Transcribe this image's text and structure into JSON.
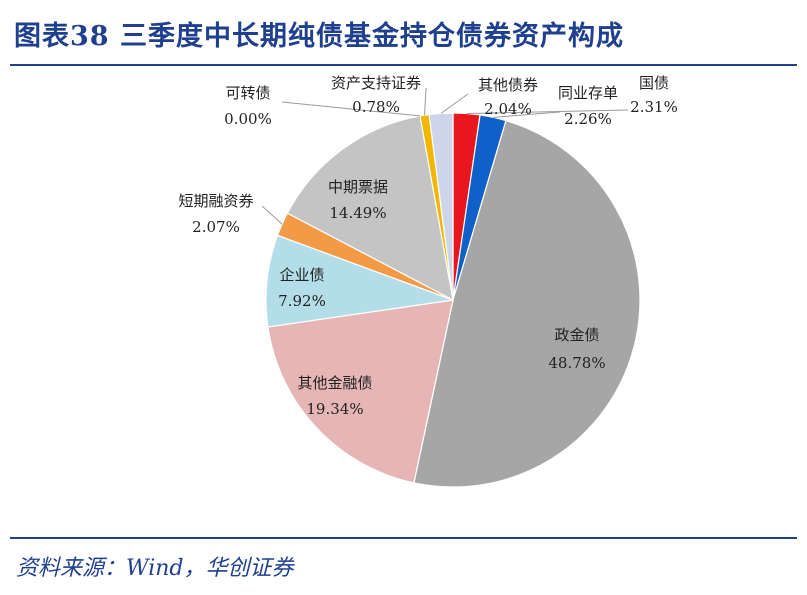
{
  "header": {
    "title": "图表38  三季度中长期纯债基金持仓债券资产构成"
  },
  "footer": {
    "source": "资料来源：Wind，华创证券"
  },
  "chart_data": {
    "type": "pie",
    "title": "",
    "slices": [
      {
        "name": "国债",
        "value": 2.31,
        "label": "2.31%",
        "color": "#e8171d"
      },
      {
        "name": "同业存单",
        "value": 2.26,
        "label": "2.26%",
        "color": "#1060c9"
      },
      {
        "name": "政金债",
        "value": 48.78,
        "label": "48.78%",
        "color": "#a6a6a6"
      },
      {
        "name": "其他金融债",
        "value": 19.34,
        "label": "19.34%",
        "color": "#e6b5b5"
      },
      {
        "name": "企业债",
        "value": 7.92,
        "label": "7.92%",
        "color": "#b3dde8"
      },
      {
        "name": "短期融资券",
        "value": 2.07,
        "label": "2.07%",
        "color": "#f29a46"
      },
      {
        "name": "中期票据",
        "value": 14.49,
        "label": "14.49%",
        "color": "#c4c4c4"
      },
      {
        "name": "可转债",
        "value": 0.0,
        "label": "0.00%",
        "color": "#4472c4"
      },
      {
        "name": "资产支持证券",
        "value": 0.78,
        "label": "0.78%",
        "color": "#f2b600"
      },
      {
        "name": "其他债券",
        "value": 2.04,
        "label": "2.04%",
        "color": "#cdd5ea"
      }
    ]
  }
}
